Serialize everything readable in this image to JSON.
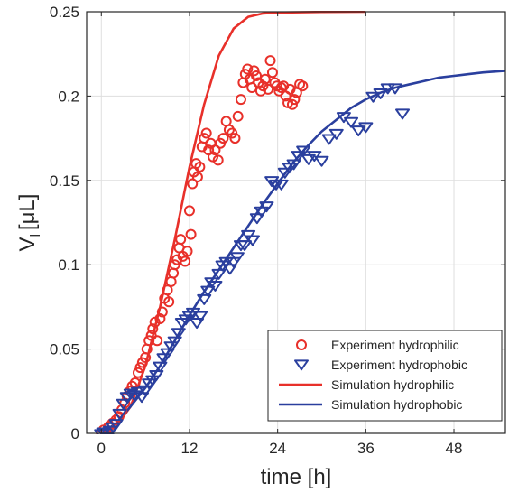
{
  "chart_data": {
    "type": "line",
    "title": "",
    "xlabel": "time [h]",
    "ylabel": "V",
    "ylabel_subscript": "l",
    "ylabel_unit": "[μL]",
    "xlim": [
      -2,
      55
    ],
    "ylim": [
      0,
      0.25
    ],
    "xticks": [
      0,
      12,
      24,
      36,
      48
    ],
    "yticks": [
      0,
      0.05,
      0.1,
      0.15,
      0.2,
      0.25
    ],
    "xtick_labels": [
      "0",
      "12",
      "24",
      "36",
      "48"
    ],
    "ytick_labels": [
      "0",
      "0.05",
      "0.1",
      "0.15",
      "0.2",
      "0.25"
    ],
    "grid": true,
    "legend_position": "bottom-right",
    "colors": {
      "hydrophilic": "#e8302a",
      "hydrophobic": "#2a3f9e",
      "grid": "#dedede",
      "axis": "#262626"
    },
    "series": [
      {
        "name": "Experiment hydrophilic",
        "kind": "scatter",
        "marker": "circle",
        "color": "#e8302a",
        "points": [
          [
            0.0,
            0.0
          ],
          [
            0.3,
            0.002
          ],
          [
            0.6,
            0.001
          ],
          [
            1.0,
            0.004
          ],
          [
            1.5,
            0.006
          ],
          [
            2.0,
            0.008
          ],
          [
            2.4,
            0.01
          ],
          [
            2.8,
            0.014
          ],
          [
            3.2,
            0.018
          ],
          [
            3.5,
            0.022
          ],
          [
            3.9,
            0.025
          ],
          [
            4.2,
            0.028
          ],
          [
            4.6,
            0.03
          ],
          [
            5.0,
            0.036
          ],
          [
            5.3,
            0.039
          ],
          [
            5.6,
            0.042
          ],
          [
            6.0,
            0.045
          ],
          [
            6.2,
            0.05
          ],
          [
            6.5,
            0.055
          ],
          [
            6.8,
            0.058
          ],
          [
            7.0,
            0.062
          ],
          [
            7.3,
            0.066
          ],
          [
            7.6,
            0.055
          ],
          [
            8.0,
            0.068
          ],
          [
            8.3,
            0.072
          ],
          [
            8.6,
            0.08
          ],
          [
            9.0,
            0.085
          ],
          [
            9.2,
            0.078
          ],
          [
            9.5,
            0.09
          ],
          [
            9.8,
            0.095
          ],
          [
            10.0,
            0.1
          ],
          [
            10.3,
            0.103
          ],
          [
            10.6,
            0.11
          ],
          [
            10.8,
            0.115
          ],
          [
            11.1,
            0.105
          ],
          [
            11.4,
            0.102
          ],
          [
            11.7,
            0.108
          ],
          [
            12.0,
            0.132
          ],
          [
            12.2,
            0.118
          ],
          [
            12.4,
            0.148
          ],
          [
            12.6,
            0.155
          ],
          [
            12.9,
            0.16
          ],
          [
            13.1,
            0.152
          ],
          [
            13.4,
            0.158
          ],
          [
            13.7,
            0.17
          ],
          [
            14.0,
            0.175
          ],
          [
            14.3,
            0.178
          ],
          [
            14.6,
            0.168
          ],
          [
            14.9,
            0.172
          ],
          [
            15.2,
            0.164
          ],
          [
            15.5,
            0.168
          ],
          [
            15.9,
            0.162
          ],
          [
            16.2,
            0.172
          ],
          [
            16.6,
            0.175
          ],
          [
            17.0,
            0.185
          ],
          [
            17.4,
            0.18
          ],
          [
            17.8,
            0.178
          ],
          [
            18.2,
            0.175
          ],
          [
            18.6,
            0.188
          ],
          [
            19.0,
            0.198
          ],
          [
            19.3,
            0.208
          ],
          [
            19.6,
            0.213
          ],
          [
            19.9,
            0.216
          ],
          [
            20.2,
            0.21
          ],
          [
            20.5,
            0.205
          ],
          [
            20.8,
            0.215
          ],
          [
            21.1,
            0.212
          ],
          [
            21.4,
            0.208
          ],
          [
            21.7,
            0.203
          ],
          [
            22.0,
            0.206
          ],
          [
            22.3,
            0.21
          ],
          [
            22.7,
            0.204
          ],
          [
            23.0,
            0.221
          ],
          [
            23.3,
            0.214
          ],
          [
            23.6,
            0.208
          ],
          [
            23.9,
            0.206
          ],
          [
            24.2,
            0.203
          ],
          [
            24.5,
            0.205
          ],
          [
            24.8,
            0.206
          ],
          [
            25.1,
            0.2
          ],
          [
            25.4,
            0.196
          ],
          [
            25.7,
            0.204
          ],
          [
            26.0,
            0.195
          ],
          [
            26.3,
            0.198
          ],
          [
            26.6,
            0.202
          ],
          [
            27.0,
            0.207
          ],
          [
            27.4,
            0.206
          ]
        ]
      },
      {
        "name": "Experiment hydrophobic",
        "kind": "scatter",
        "marker": "triangle-down",
        "color": "#2a3f9e",
        "points": [
          [
            0.0,
            0.0
          ],
          [
            0.3,
            0.001
          ],
          [
            0.8,
            -0.002
          ],
          [
            1.2,
            0.002
          ],
          [
            1.6,
            0.004
          ],
          [
            2.0,
            0.006
          ],
          [
            2.5,
            0.012
          ],
          [
            3.0,
            0.018
          ],
          [
            3.5,
            0.022
          ],
          [
            4.0,
            0.024
          ],
          [
            4.5,
            0.023
          ],
          [
            5.0,
            0.025
          ],
          [
            5.5,
            0.022
          ],
          [
            6.0,
            0.026
          ],
          [
            6.5,
            0.03
          ],
          [
            7.0,
            0.032
          ],
          [
            7.5,
            0.035
          ],
          [
            8.0,
            0.04
          ],
          [
            8.5,
            0.045
          ],
          [
            9.0,
            0.048
          ],
          [
            9.5,
            0.052
          ],
          [
            10.0,
            0.055
          ],
          [
            10.5,
            0.06
          ],
          [
            11.0,
            0.066
          ],
          [
            11.5,
            0.068
          ],
          [
            12.0,
            0.07
          ],
          [
            12.5,
            0.072
          ],
          [
            13.0,
            0.066
          ],
          [
            13.5,
            0.07
          ],
          [
            14.0,
            0.08
          ],
          [
            14.5,
            0.085
          ],
          [
            15.0,
            0.09
          ],
          [
            15.5,
            0.088
          ],
          [
            16.0,
            0.095
          ],
          [
            16.5,
            0.1
          ],
          [
            17.0,
            0.102
          ],
          [
            17.5,
            0.098
          ],
          [
            18.0,
            0.102
          ],
          [
            18.5,
            0.105
          ],
          [
            19.0,
            0.112
          ],
          [
            19.5,
            0.112
          ],
          [
            20.0,
            0.118
          ],
          [
            20.6,
            0.115
          ],
          [
            21.2,
            0.128
          ],
          [
            21.8,
            0.132
          ],
          [
            22.5,
            0.135
          ],
          [
            23.2,
            0.15
          ],
          [
            23.8,
            0.148
          ],
          [
            24.5,
            0.148
          ],
          [
            25.0,
            0.155
          ],
          [
            25.6,
            0.158
          ],
          [
            26.2,
            0.16
          ],
          [
            26.8,
            0.165
          ],
          [
            27.5,
            0.168
          ],
          [
            28.2,
            0.163
          ],
          [
            29.0,
            0.165
          ],
          [
            30.0,
            0.162
          ],
          [
            31.0,
            0.175
          ],
          [
            32.0,
            0.178
          ],
          [
            33.0,
            0.188
          ],
          [
            34.0,
            0.185
          ],
          [
            35.0,
            0.18
          ],
          [
            36.0,
            0.182
          ],
          [
            37.0,
            0.2
          ],
          [
            38.0,
            0.202
          ],
          [
            39.0,
            0.205
          ],
          [
            40.0,
            0.205
          ],
          [
            41.0,
            0.19
          ]
        ]
      },
      {
        "name": "Simulation hydrophilic",
        "kind": "line",
        "color": "#e8302a",
        "points": [
          [
            0,
            0.0
          ],
          [
            2,
            0.004
          ],
          [
            4,
            0.016
          ],
          [
            6,
            0.04
          ],
          [
            8,
            0.075
          ],
          [
            10,
            0.115
          ],
          [
            12,
            0.158
          ],
          [
            14,
            0.195
          ],
          [
            16,
            0.224
          ],
          [
            18,
            0.24
          ],
          [
            20,
            0.247
          ],
          [
            22,
            0.249
          ],
          [
            24,
            0.2495
          ],
          [
            30,
            0.2499
          ],
          [
            36,
            0.25
          ]
        ]
      },
      {
        "name": "Simulation hydrophobic",
        "kind": "line",
        "color": "#2a3f9e",
        "points": [
          [
            0,
            0.0
          ],
          [
            2,
            0.006
          ],
          [
            4,
            0.016
          ],
          [
            6,
            0.027
          ],
          [
            8,
            0.04
          ],
          [
            10,
            0.055
          ],
          [
            12,
            0.07
          ],
          [
            14,
            0.084
          ],
          [
            16,
            0.097
          ],
          [
            18,
            0.11
          ],
          [
            20,
            0.123
          ],
          [
            22,
            0.136
          ],
          [
            24,
            0.148
          ],
          [
            26,
            0.16
          ],
          [
            28,
            0.17
          ],
          [
            30,
            0.179
          ],
          [
            32,
            0.186
          ],
          [
            34,
            0.193
          ],
          [
            36,
            0.198
          ],
          [
            38,
            0.202
          ],
          [
            40,
            0.205
          ],
          [
            42,
            0.207
          ],
          [
            44,
            0.209
          ],
          [
            46,
            0.211
          ],
          [
            48,
            0.212
          ],
          [
            50,
            0.213
          ],
          [
            52,
            0.214
          ],
          [
            55,
            0.215
          ]
        ]
      }
    ]
  }
}
